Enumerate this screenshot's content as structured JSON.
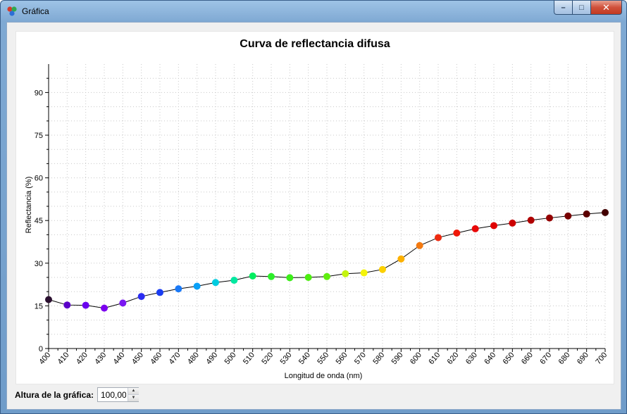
{
  "window": {
    "title": "Gráfica",
    "buttons": {
      "minimize": "–",
      "maximize": "□",
      "close": "✕"
    }
  },
  "controls": {
    "height_label": "Altura de la gráfica:",
    "height_value": "100,00"
  },
  "chart_data": {
    "type": "scatter",
    "title": "Curva de reflectancia difusa",
    "xlabel": "Longitud de onda (nm)",
    "ylabel": "Reflectancia (%)",
    "xlim": [
      400,
      700
    ],
    "ylim": [
      0,
      100
    ],
    "x_ticks": [
      400,
      410,
      420,
      430,
      440,
      450,
      460,
      470,
      480,
      490,
      500,
      510,
      520,
      530,
      540,
      550,
      560,
      570,
      580,
      590,
      600,
      610,
      620,
      630,
      640,
      650,
      660,
      670,
      680,
      690,
      700
    ],
    "y_ticks": [
      0,
      15,
      30,
      45,
      60,
      75,
      90
    ],
    "grid": true,
    "legend": "none",
    "x": [
      400,
      410,
      420,
      430,
      440,
      450,
      460,
      470,
      480,
      490,
      500,
      510,
      520,
      530,
      540,
      550,
      560,
      570,
      580,
      590,
      600,
      610,
      620,
      630,
      640,
      650,
      660,
      670,
      680,
      690,
      700
    ],
    "y": [
      17.2,
      15.3,
      15.2,
      14.2,
      16.0,
      18.3,
      19.7,
      21.0,
      21.9,
      23.2,
      24.0,
      25.5,
      25.3,
      24.9,
      25.0,
      25.3,
      26.3,
      26.6,
      27.8,
      31.5,
      36.2,
      39.0,
      40.6,
      42.1,
      43.2,
      44.1,
      45.1,
      45.9,
      46.6,
      47.3,
      47.8
    ],
    "point_colors": [
      "#2b1030",
      "#5a00c8",
      "#6a00ef",
      "#7b00ef",
      "#7a17f2",
      "#2a2cf2",
      "#1a3df2",
      "#1a79f7",
      "#0aa0f7",
      "#00cce0",
      "#00e8a0",
      "#00ee60",
      "#2dee2a",
      "#3cee1a",
      "#4cee10",
      "#60ee10",
      "#c4f410",
      "#f4f40a",
      "#fcd000",
      "#fcb000",
      "#f47a10",
      "#ee2a10",
      "#f01808",
      "#e80808",
      "#e00000",
      "#cc0000",
      "#b00000",
      "#940000",
      "#780000",
      "#5c0000",
      "#420000"
    ]
  }
}
